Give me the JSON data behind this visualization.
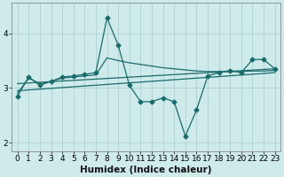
{
  "xlabel": "Humidex (Indice chaleur)",
  "background_color": "#ceeaea",
  "grid_color": "#add0d0",
  "line_color": "#1a6b6b",
  "xlim": [
    -0.5,
    23.5
  ],
  "ylim": [
    1.85,
    4.55
  ],
  "yticks": [
    2,
    3,
    4
  ],
  "xticks": [
    0,
    1,
    2,
    3,
    4,
    5,
    6,
    7,
    8,
    9,
    10,
    11,
    12,
    13,
    14,
    15,
    16,
    17,
    18,
    19,
    20,
    21,
    22,
    23
  ],
  "line1_x": [
    0,
    1,
    2,
    3,
    4,
    5,
    6,
    7,
    8,
    9,
    10,
    11,
    12,
    13,
    14,
    15,
    16,
    17,
    18,
    19,
    20,
    21,
    22,
    23
  ],
  "line1_y": [
    2.85,
    3.2,
    3.05,
    3.12,
    3.2,
    3.22,
    3.25,
    3.28,
    4.28,
    3.78,
    3.05,
    2.75,
    2.75,
    2.82,
    2.75,
    2.12,
    2.6,
    3.22,
    3.28,
    3.32,
    3.28,
    3.52,
    3.52,
    3.35
  ],
  "line2_x": [
    0,
    1,
    2,
    3,
    4,
    5,
    6,
    7,
    8,
    9,
    10,
    11,
    12,
    13,
    14,
    15,
    16,
    17,
    18,
    19,
    20,
    21,
    22,
    23
  ],
  "line2_y": [
    2.9,
    3.18,
    3.08,
    3.12,
    3.18,
    3.2,
    3.22,
    3.24,
    3.55,
    3.5,
    3.46,
    3.43,
    3.4,
    3.37,
    3.35,
    3.33,
    3.31,
    3.3,
    3.3,
    3.3,
    3.3,
    3.31,
    3.31,
    3.32
  ],
  "line3_x": [
    0,
    23
  ],
  "line3_y": [
    3.08,
    3.35
  ],
  "line4_x": [
    0,
    23
  ],
  "line4_y": [
    2.95,
    3.28
  ],
  "marker": "D",
  "marker_size": 2.5,
  "linewidth": 0.9,
  "tick_fontsize": 6.5,
  "xlabel_fontsize": 7.5
}
